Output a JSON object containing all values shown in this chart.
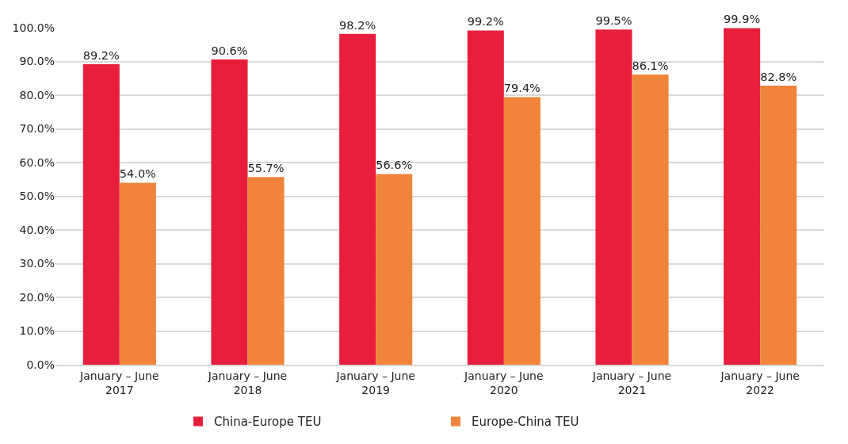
{
  "chart_data": {
    "type": "bar",
    "categories": [
      "January – June\n2017",
      "January – June\n2018",
      "January – June\n2019",
      "January – June\n2020",
      "January – June\n2021",
      "January – June\n2022"
    ],
    "series": [
      {
        "name": "China-Europe TEU",
        "color": "#e81f3c",
        "values": [
          89.2,
          90.6,
          98.2,
          99.2,
          99.5,
          99.9
        ],
        "value_labels": [
          "89.2%",
          "90.6%",
          "98.2%",
          "99.2%",
          "99.5%",
          "99.9%"
        ]
      },
      {
        "name": "Europe-China TEU",
        "color": "#f0843a",
        "values": [
          54.0,
          55.7,
          56.6,
          79.4,
          86.1,
          82.8
        ],
        "value_labels": [
          "54.0%",
          "55.7%",
          "56.6%",
          "79.4%",
          "86.1%",
          "82.8%"
        ]
      }
    ],
    "ylim": [
      0,
      100
    ],
    "yticks": [
      {
        "value": 0,
        "label": "0.0%"
      },
      {
        "value": 10,
        "label": "10.0%"
      },
      {
        "value": 20,
        "label": "20.0%"
      },
      {
        "value": 30,
        "label": "30.0%"
      },
      {
        "value": 40,
        "label": "40.0%"
      },
      {
        "value": 50,
        "label": "50.0%"
      },
      {
        "value": 60,
        "label": "60.0%"
      },
      {
        "value": 70,
        "label": "70.0%"
      },
      {
        "value": 80,
        "label": "80.0%"
      },
      {
        "value": 90,
        "label": "90.0%"
      },
      {
        "value": 100,
        "label": "100.0%"
      }
    ],
    "grid": "y",
    "legend": "bottom"
  }
}
